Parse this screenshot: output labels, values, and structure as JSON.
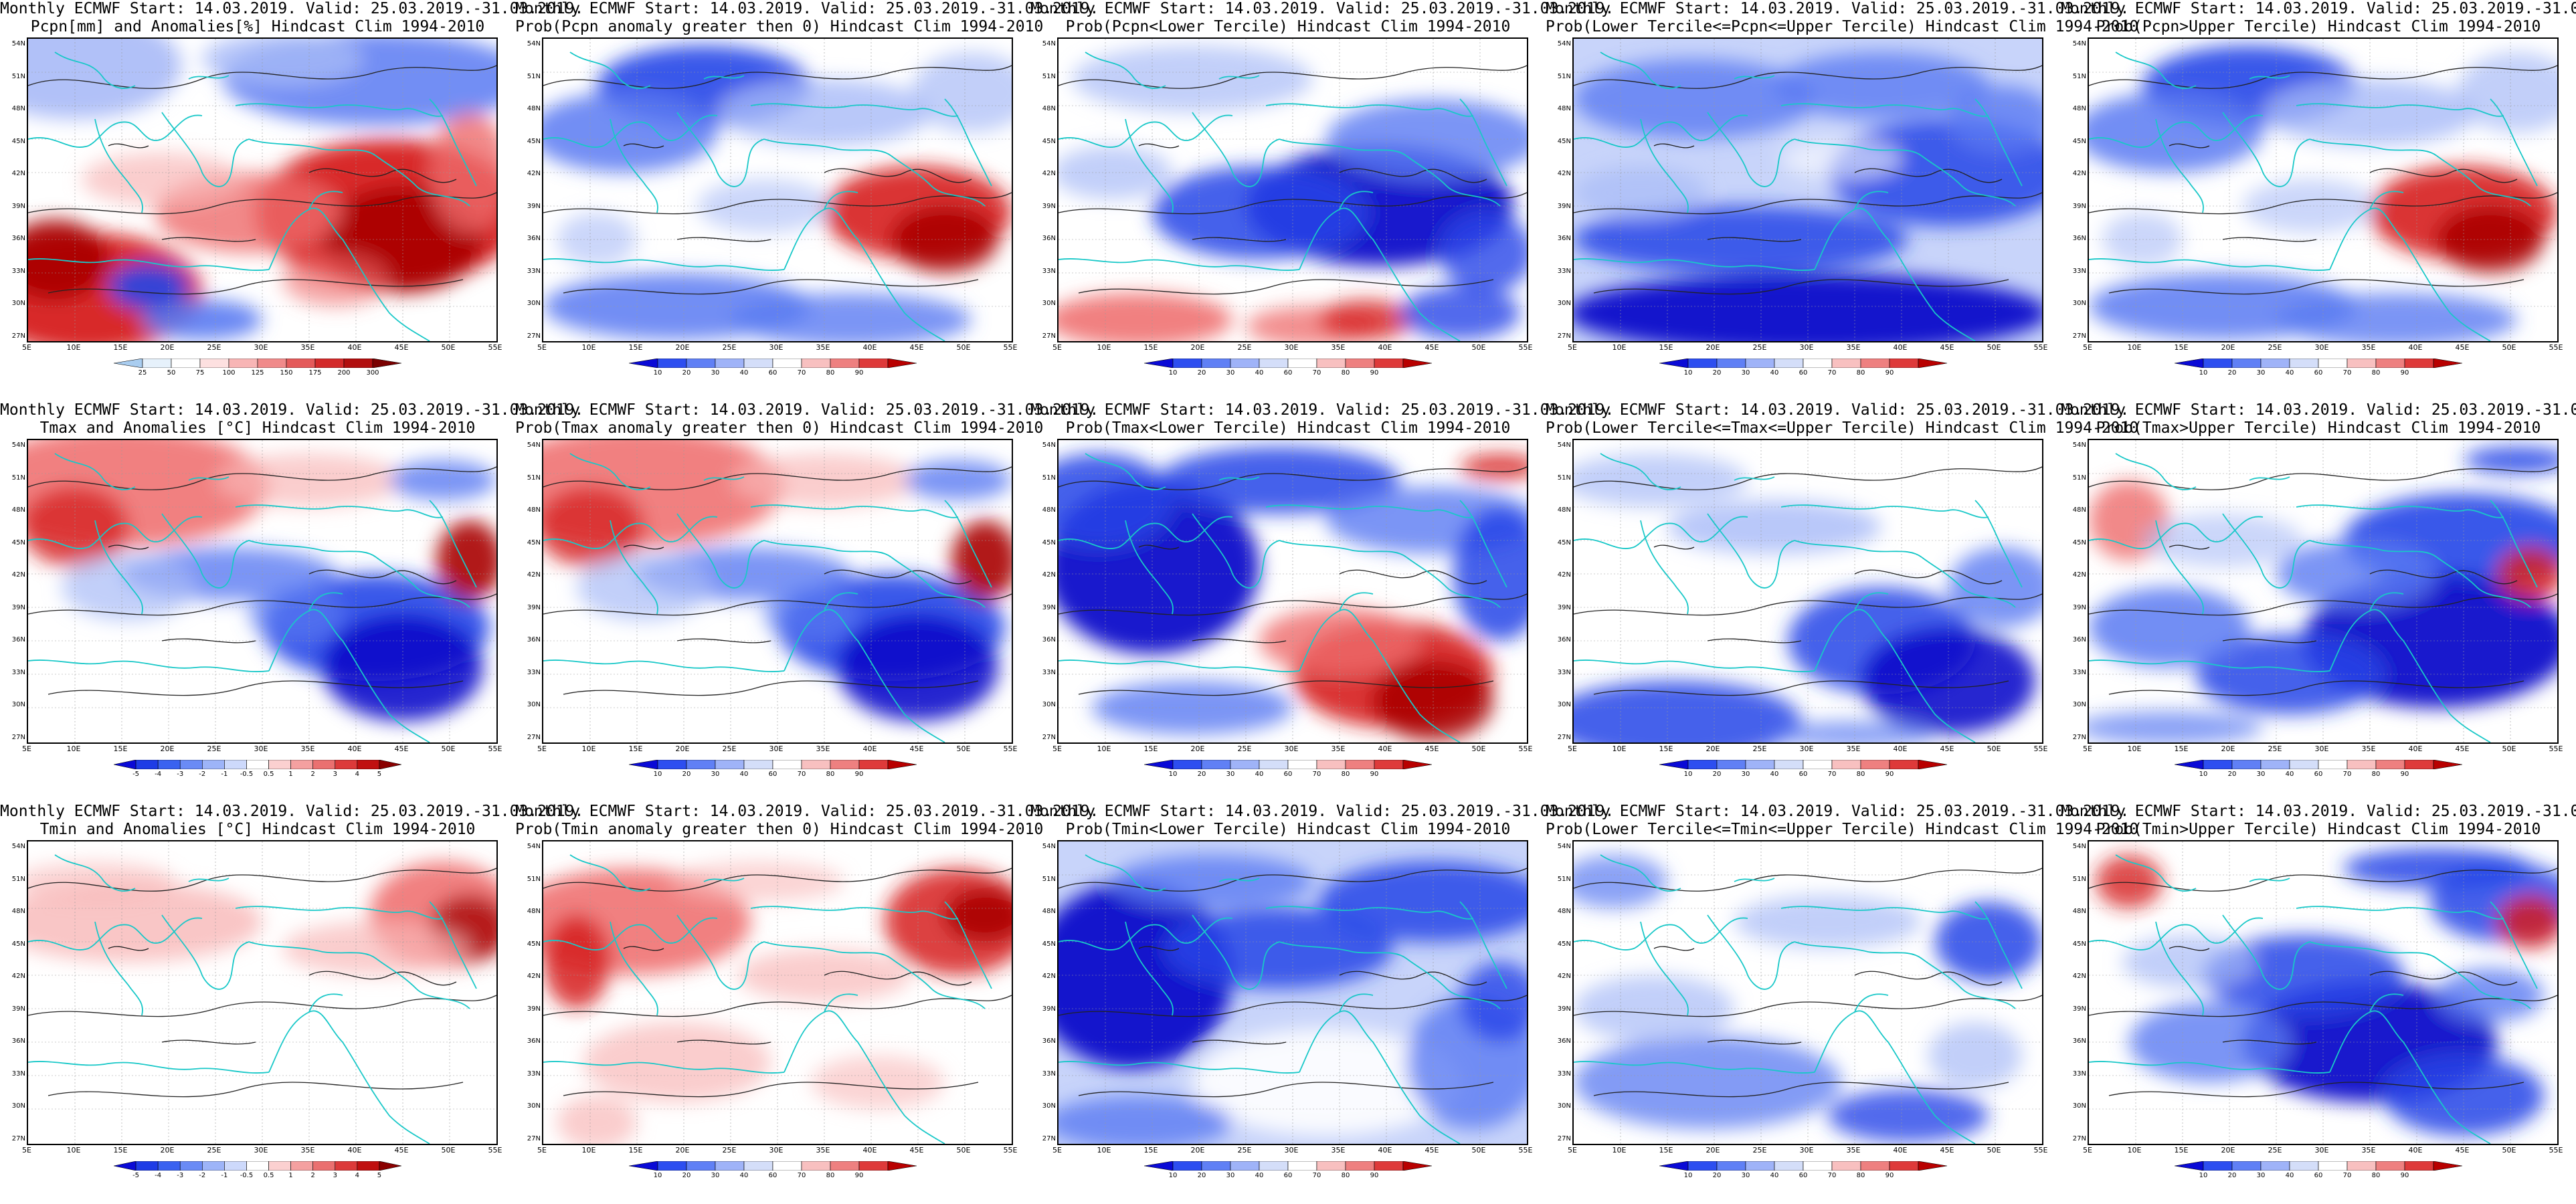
{
  "header_line": "Monthly ECMWF Start: 14.03.2019. Valid: 25.03.2019.-31.03.2019.",
  "lon_ticks": [
    "5E",
    "10E",
    "15E",
    "20E",
    "25E",
    "30E",
    "35E",
    "40E",
    "45E",
    "50E",
    "55E"
  ],
  "lat_ticks": [
    "54N",
    "51N",
    "48N",
    "45N",
    "42N",
    "39N",
    "36N",
    "33N",
    "30N",
    "27N"
  ],
  "scales": {
    "precip": {
      "labels": [
        "25",
        "50",
        "75",
        "100",
        "125",
        "150",
        "175",
        "200",
        "300"
      ],
      "colors": [
        "#a9cdf0",
        "#e6f1fb",
        "#ffffff",
        "#fde0e0",
        "#f8b5b5",
        "#f08a8a",
        "#e45a5a",
        "#d32a2a",
        "#b10f0f",
        "#7a0000"
      ]
    },
    "anom": {
      "labels": [
        "-5",
        "-4",
        "-3",
        "-2",
        "-1",
        "-0.5",
        "0.5",
        "1",
        "2",
        "3",
        "4",
        "5"
      ],
      "colors": [
        "#0a0ad6",
        "#1e3ce6",
        "#3a62f0",
        "#6a8bf5",
        "#9db4f8",
        "#cdd9fb",
        "#ffffff",
        "#fbd0d0",
        "#f4a0a0",
        "#ea7070",
        "#dc3a3a",
        "#c01010",
        "#8a0000"
      ]
    },
    "prob": {
      "labels": [
        "10",
        "20",
        "30",
        "40",
        "60",
        "70",
        "80",
        "90"
      ],
      "colors": [
        "#0a0ad6",
        "#2d4ef0",
        "#6080f5",
        "#9fb3f8",
        "#d4def9",
        "#ffffff",
        "#f8c0c0",
        "#ee8080",
        "#de3a3a",
        "#b80000"
      ]
    }
  },
  "panels": [
    {
      "title2": "Pcpn[mm] and Anomalies[%] Hindcast Clim 1994-2010",
      "scale": "precip",
      "theme": "pr_anom"
    },
    {
      "title2": "Prob(Pcpn anomaly greater then 0) Hindcast Clim 1994-2010",
      "scale": "prob",
      "theme": "pr_above"
    },
    {
      "title2": "Prob(Pcpn<Lower Tercile) Hindcast Clim 1994-2010",
      "scale": "prob",
      "theme": "pr_lower"
    },
    {
      "title2": "Prob(Lower Tercile<=Pcpn<=Upper Tercile) Hindcast Clim 1994-2010",
      "scale": "prob",
      "theme": "pr_mid"
    },
    {
      "title2": "Prob(Pcpn>Upper Tercile) Hindcast Clim 1994-2010",
      "scale": "prob",
      "theme": "pr_above"
    },
    {
      "title2": "Tmax and Anomalies [°C] Hindcast Clim 1994-2010",
      "scale": "anom",
      "theme": "tx_anom"
    },
    {
      "title2": "Prob(Tmax anomaly greater then 0) Hindcast Clim 1994-2010",
      "scale": "prob",
      "theme": "tx_anom"
    },
    {
      "title2": "Prob(Tmax<Lower Tercile) Hindcast Clim 1994-2010",
      "scale": "prob",
      "theme": "tx_lower"
    },
    {
      "title2": "Prob(Lower Tercile<=Tmax<=Upper Tercile) Hindcast Clim 1994-2010",
      "scale": "prob",
      "theme": "tx_mid"
    },
    {
      "title2": "Prob(Tmax>Upper Tercile) Hindcast Clim 1994-2010",
      "scale": "prob",
      "theme": "tx_upper"
    },
    {
      "title2": "Tmin and Anomalies [°C] Hindcast Clim 1994-2010",
      "scale": "anom",
      "theme": "tn_anom"
    },
    {
      "title2": "Prob(Tmin anomaly greater then 0) Hindcast Clim 1994-2010",
      "scale": "prob",
      "theme": "tn_above"
    },
    {
      "title2": "Prob(Tmin<Lower Tercile) Hindcast Clim 1994-2010",
      "scale": "prob",
      "theme": "tn_lower"
    },
    {
      "title2": "Prob(Lower Tercile<=Tmin<=Upper Tercile) Hindcast Clim 1994-2010",
      "scale": "prob",
      "theme": "tn_mid"
    },
    {
      "title2": "Prob(Tmin>Upper Tercile) Hindcast Clim 1994-2010",
      "scale": "prob",
      "theme": "tn_upper"
    }
  ]
}
